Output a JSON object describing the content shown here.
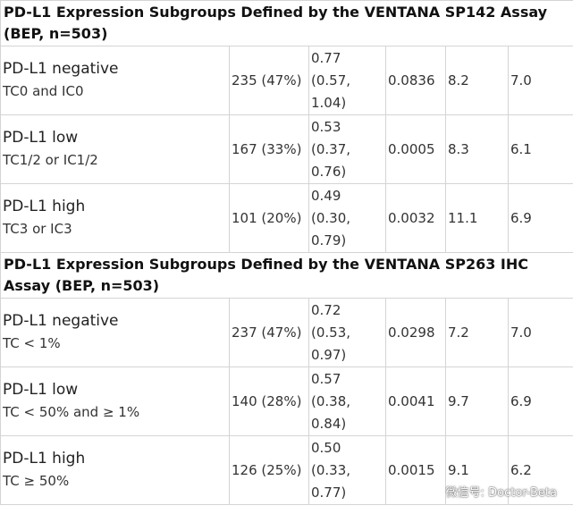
{
  "sections": [
    {
      "title": "PD-L1 Expression Subgroups Defined by the VENTANA SP142 Assay (BEP, n=503)",
      "rows": [
        {
          "label": "PD-L1 negative",
          "sublabel": "TC0 and IC0",
          "n": "235 (47%)",
          "hr": "0.77",
          "ci": "(0.57, 1.04)",
          "p": "0.0836",
          "a": "8.2",
          "b": "7.0"
        },
        {
          "label": "PD-L1 low",
          "sublabel": "TC1/2 or IC1/2",
          "n": "167 (33%)",
          "hr": "0.53",
          "ci": "(0.37, 0.76)",
          "p": "0.0005",
          "a": "8.3",
          "b": "6.1"
        },
        {
          "label": "PD-L1 high",
          "sublabel": "TC3 or IC3",
          "n": "101 (20%)",
          "hr": "0.49",
          "ci": "(0.30, 0.79)",
          "p": "0.0032",
          "a": "11.1",
          "b": "6.9"
        }
      ]
    },
    {
      "title": "PD-L1 Expression Subgroups Defined by the VENTANA SP263 IHC Assay (BEP, n=503)",
      "rows": [
        {
          "label": "PD-L1 negative",
          "sublabel": "TC < 1%",
          "n": "237 (47%)",
          "hr": "0.72",
          "ci": "(0.53, 0.97)",
          "p": "0.0298",
          "a": "7.2",
          "b": "7.0"
        },
        {
          "label": "PD-L1 low",
          "sublabel": "TC < 50% and ≥ 1%",
          "n": "140 (28%)",
          "hr": "0.57",
          "ci": "(0.38, 0.84)",
          "p": "0.0041",
          "a": "9.7",
          "b": "6.9"
        },
        {
          "label": "PD-L1 high",
          "sublabel": "TC ≥ 50%",
          "n": "126 (25%)",
          "hr": "0.50",
          "ci": "(0.33, 0.77)",
          "p": "0.0015",
          "a": "9.1",
          "b": "6.2"
        }
      ]
    }
  ],
  "watermark": "微信号: Doctor-Beta"
}
